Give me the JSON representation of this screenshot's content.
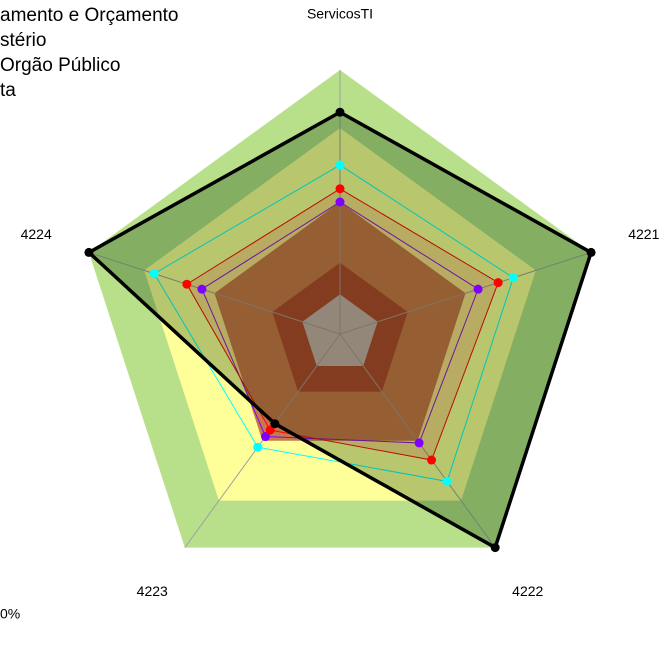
{
  "chart_data": {
    "type": "radar",
    "categories": [
      "ServicosTI",
      "4221",
      "4222",
      "4223",
      "4224"
    ],
    "rlim": [
      0,
      1
    ],
    "bands": [
      {
        "to": 1.0,
        "color": "#b8e08a"
      },
      {
        "to": 0.78,
        "color": "#ffff99"
      },
      {
        "to": 0.5,
        "color": "#c67a4a"
      },
      {
        "to": 0.27,
        "color": "#a8412c"
      },
      {
        "to": 0.15,
        "color": "#c0c0c0"
      }
    ],
    "series": [
      {
        "name": "amento e Orçamento",
        "color": "#7f00ff",
        "values": [
          0.5,
          0.55,
          0.51,
          0.48,
          0.55
        ]
      },
      {
        "name": "stério",
        "color": "#ff0000",
        "values": [
          0.55,
          0.63,
          0.59,
          0.45,
          0.61
        ]
      },
      {
        "name": "Orgão Público",
        "color": "#00ffff",
        "values": [
          0.64,
          0.69,
          0.69,
          0.53,
          0.74
        ]
      },
      {
        "name": "ta",
        "color": "#000000",
        "values": [
          0.84,
          1.0,
          1.0,
          0.42,
          1.0
        ]
      }
    ],
    "annotation": "0%"
  }
}
